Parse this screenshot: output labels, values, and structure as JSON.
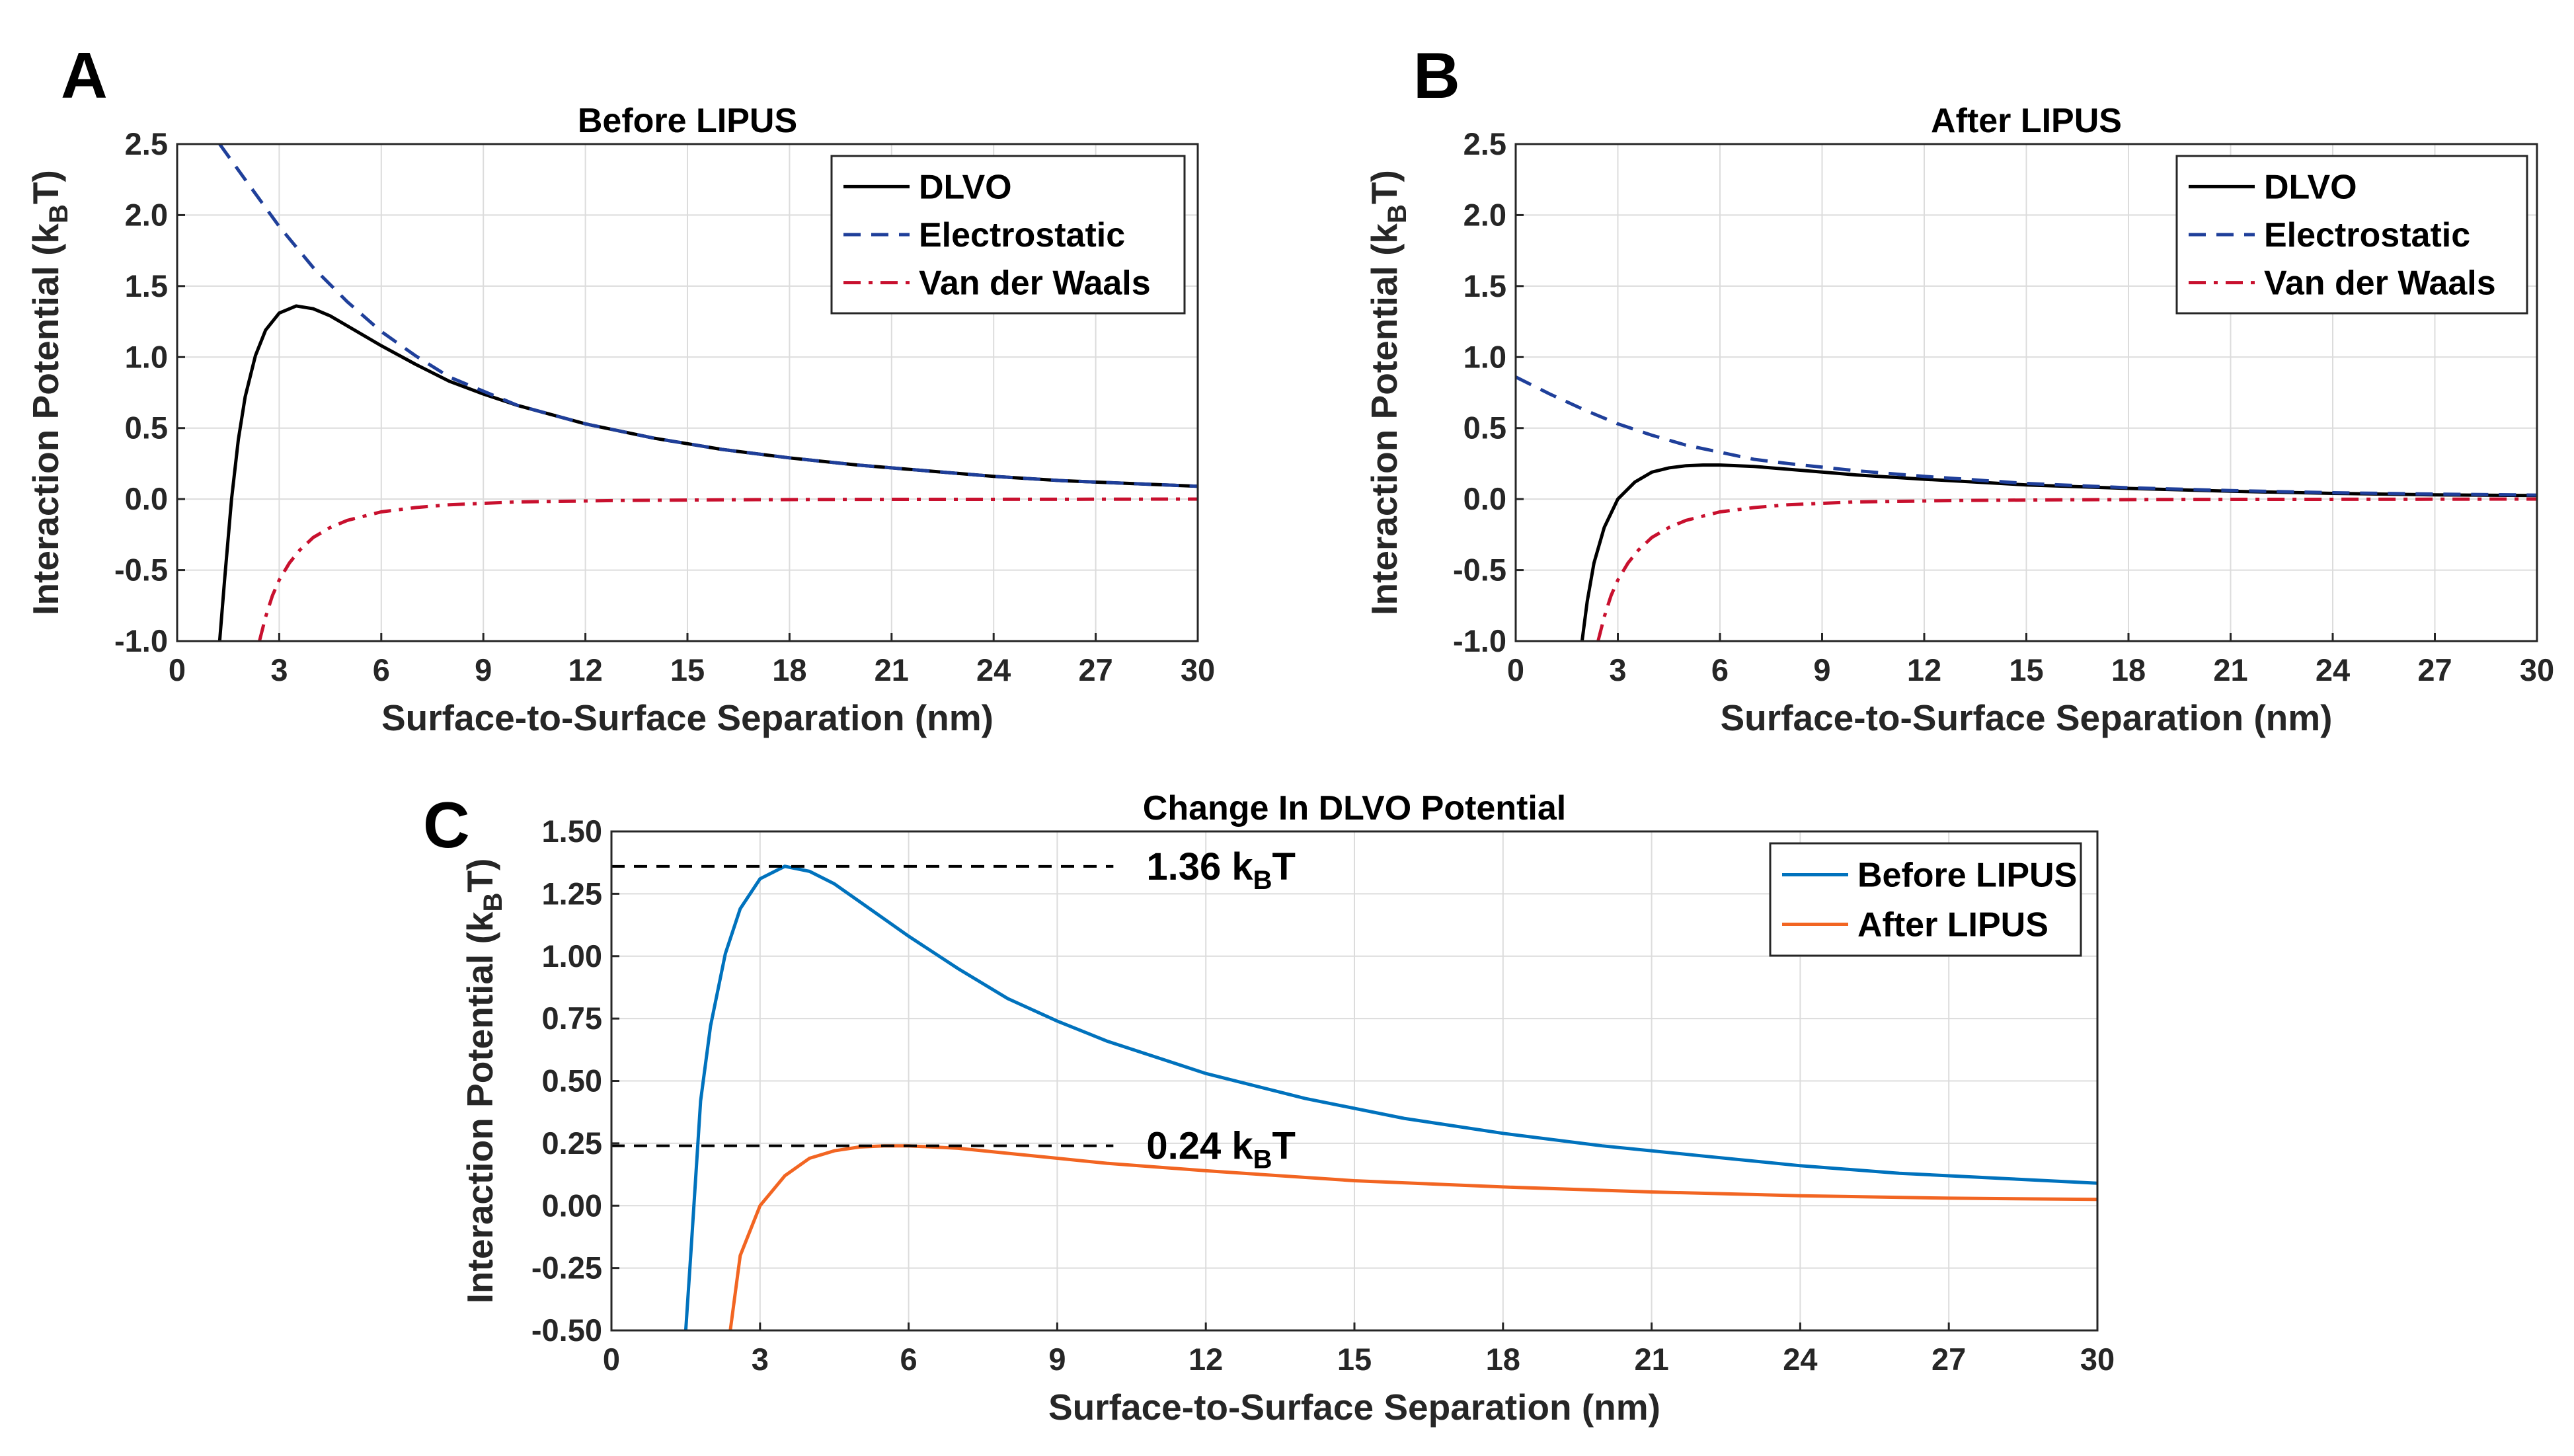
{
  "chart_data": [
    {
      "id": "A",
      "type": "line",
      "panel_label": "A",
      "title": "Before LIPUS",
      "xlabel": "Surface-to-Surface Separation (nm)",
      "ylabel": "Interaction Potential (k",
      "ylabel_sub": "B",
      "ylabel_tail": "T)",
      "xlim": [
        0,
        30
      ],
      "ylim": [
        -1.0,
        2.5
      ],
      "xticks": [
        0,
        3,
        6,
        9,
        12,
        15,
        18,
        21,
        24,
        27,
        30
      ],
      "xtick_labels": [
        "0",
        "3",
        "6",
        "9",
        "12",
        "15",
        "18",
        "21",
        "24",
        "27",
        "30"
      ],
      "yticks": [
        -1.0,
        -0.5,
        0.0,
        0.5,
        1.0,
        1.5,
        2.0,
        2.5
      ],
      "ytick_labels": [
        "-1.0",
        "-0.5",
        "0.0",
        "0.5",
        "1.0",
        "1.5",
        "2.0",
        "2.5"
      ],
      "grid": true,
      "legend_position": "top-right",
      "series": [
        {
          "name": "DLVO",
          "color": "#000000",
          "dash": "solid",
          "x": [
            1.25,
            1.4,
            1.6,
            1.8,
            2.0,
            2.3,
            2.6,
            3.0,
            3.5,
            4.0,
            4.5,
            5.0,
            6.0,
            7.0,
            8.0,
            9.0,
            10.0,
            12.0,
            14.0,
            16.0,
            18.0,
            20.0,
            22.0,
            24.0,
            26.0,
            28.0,
            30.0
          ],
          "y": [
            -1.0,
            -0.55,
            0.0,
            0.42,
            0.72,
            1.01,
            1.19,
            1.31,
            1.36,
            1.34,
            1.29,
            1.22,
            1.08,
            0.95,
            0.83,
            0.74,
            0.66,
            0.53,
            0.43,
            0.35,
            0.29,
            0.24,
            0.2,
            0.16,
            0.13,
            0.11,
            0.09
          ]
        },
        {
          "name": "Electrostatic",
          "color": "#1f3f9a",
          "dash": "dashed",
          "x": [
            1.25,
            2.0,
            3.0,
            4.0,
            5.0,
            6.0,
            7.0,
            8.0,
            10.0,
            12.0,
            14.0,
            16.0,
            18.0,
            20.0,
            22.0,
            24.0,
            26.0,
            28.0,
            30.0
          ],
          "y": [
            2.5,
            2.25,
            1.92,
            1.63,
            1.39,
            1.18,
            1.01,
            0.86,
            0.66,
            0.53,
            0.43,
            0.35,
            0.29,
            0.24,
            0.2,
            0.16,
            0.13,
            0.11,
            0.09
          ]
        },
        {
          "name": "Van der Waals",
          "color": "#c8102e",
          "dash": "dashdot",
          "x": [
            2.42,
            2.6,
            2.8,
            3.0,
            3.3,
            3.6,
            4.0,
            4.5,
            5.0,
            6.0,
            7.0,
            8.0,
            10.0,
            13.0,
            16.0,
            20.0,
            25.0,
            30.0
          ],
          "y": [
            -1.0,
            -0.83,
            -0.68,
            -0.57,
            -0.45,
            -0.36,
            -0.27,
            -0.2,
            -0.15,
            -0.09,
            -0.06,
            -0.04,
            -0.02,
            -0.01,
            -0.005,
            -0.002,
            -0.001,
            0.0
          ]
        }
      ]
    },
    {
      "id": "B",
      "type": "line",
      "panel_label": "B",
      "title": "After LIPUS",
      "xlabel": "Surface-to-Surface Separation (nm)",
      "ylabel": "Interaction Potential (k",
      "ylabel_sub": "B",
      "ylabel_tail": "T)",
      "xlim": [
        0,
        30
      ],
      "ylim": [
        -1.0,
        2.5
      ],
      "xticks": [
        0,
        3,
        6,
        9,
        12,
        15,
        18,
        21,
        24,
        27,
        30
      ],
      "xtick_labels": [
        "0",
        "3",
        "6",
        "9",
        "12",
        "15",
        "18",
        "21",
        "24",
        "27",
        "30"
      ],
      "yticks": [
        -1.0,
        -0.5,
        0.0,
        0.5,
        1.0,
        1.5,
        2.0,
        2.5
      ],
      "ytick_labels": [
        "-1.0",
        "-0.5",
        "0.0",
        "0.5",
        "1.0",
        "1.5",
        "2.0",
        "2.5"
      ],
      "grid": true,
      "legend_position": "top-right",
      "series": [
        {
          "name": "DLVO",
          "color": "#000000",
          "dash": "solid",
          "x": [
            1.95,
            2.1,
            2.3,
            2.6,
            3.0,
            3.5,
            4.0,
            4.5,
            5.0,
            5.5,
            6.0,
            7.0,
            8.0,
            9.0,
            10.0,
            12.0,
            15.0,
            18.0,
            21.0,
            24.0,
            27.0,
            30.0
          ],
          "y": [
            -1.0,
            -0.72,
            -0.45,
            -0.2,
            0.0,
            0.12,
            0.19,
            0.22,
            0.235,
            0.24,
            0.24,
            0.23,
            0.21,
            0.19,
            0.17,
            0.14,
            0.1,
            0.075,
            0.055,
            0.04,
            0.03,
            0.025
          ]
        },
        {
          "name": "Electrostatic",
          "color": "#1f3f9a",
          "dash": "dashed",
          "x": [
            0.0,
            1.0,
            2.0,
            3.0,
            4.0,
            5.0,
            6.0,
            7.0,
            8.0,
            10.0,
            12.0,
            15.0,
            18.0,
            21.0,
            24.0,
            27.0,
            30.0
          ],
          "y": [
            0.86,
            0.74,
            0.63,
            0.53,
            0.45,
            0.38,
            0.33,
            0.28,
            0.25,
            0.2,
            0.16,
            0.11,
            0.08,
            0.06,
            0.045,
            0.035,
            0.028
          ]
        },
        {
          "name": "Van der Waals",
          "color": "#c8102e",
          "dash": "dashdot",
          "x": [
            2.42,
            2.6,
            2.8,
            3.0,
            3.3,
            3.6,
            4.0,
            4.5,
            5.0,
            6.0,
            7.0,
            8.0,
            10.0,
            13.0,
            16.0,
            20.0,
            25.0,
            30.0
          ],
          "y": [
            -1.0,
            -0.83,
            -0.68,
            -0.57,
            -0.45,
            -0.36,
            -0.27,
            -0.2,
            -0.15,
            -0.09,
            -0.06,
            -0.04,
            -0.02,
            -0.01,
            -0.005,
            -0.002,
            -0.001,
            0.0
          ]
        }
      ]
    },
    {
      "id": "C",
      "type": "line",
      "panel_label": "C",
      "title": "Change In DLVO Potential",
      "xlabel": "Surface-to-Surface Separation (nm)",
      "ylabel": "Interaction Potential (k",
      "ylabel_sub": "B",
      "ylabel_tail": "T)",
      "xlim": [
        0,
        30
      ],
      "ylim": [
        -0.5,
        1.5
      ],
      "xticks": [
        0,
        3,
        6,
        9,
        12,
        15,
        18,
        21,
        24,
        27,
        30
      ],
      "xtick_labels": [
        "0",
        "3",
        "6",
        "9",
        "12",
        "15",
        "18",
        "21",
        "24",
        "27",
        "30"
      ],
      "yticks": [
        -0.5,
        -0.25,
        0.0,
        0.25,
        0.5,
        0.75,
        1.0,
        1.25,
        1.5
      ],
      "ytick_labels": [
        "-0.50",
        "-0.25",
        "0.00",
        "0.25",
        "0.50",
        "0.75",
        "1.00",
        "1.25",
        "1.50"
      ],
      "grid": true,
      "legend_position": "top-right",
      "series": [
        {
          "name": "Before LIPUS",
          "color": "#0072bd",
          "dash": "solid",
          "x": [
            1.5,
            1.6,
            1.8,
            2.0,
            2.3,
            2.6,
            3.0,
            3.5,
            4.0,
            4.5,
            5.0,
            6.0,
            7.0,
            8.0,
            9.0,
            10.0,
            12.0,
            14.0,
            16.0,
            18.0,
            20.0,
            22.0,
            24.0,
            26.0,
            28.0,
            30.0
          ],
          "y": [
            -0.5,
            -0.2,
            0.42,
            0.72,
            1.01,
            1.19,
            1.31,
            1.36,
            1.34,
            1.29,
            1.22,
            1.08,
            0.95,
            0.83,
            0.74,
            0.66,
            0.53,
            0.43,
            0.35,
            0.29,
            0.24,
            0.2,
            0.16,
            0.13,
            0.11,
            0.09
          ]
        },
        {
          "name": "After LIPUS",
          "color": "#f26522",
          "dash": "solid",
          "x": [
            2.4,
            2.6,
            3.0,
            3.5,
            4.0,
            4.5,
            5.0,
            5.5,
            6.0,
            7.0,
            8.0,
            9.0,
            10.0,
            12.0,
            15.0,
            18.0,
            21.0,
            24.0,
            27.0,
            30.0
          ],
          "y": [
            -0.5,
            -0.2,
            0.0,
            0.12,
            0.19,
            0.22,
            0.235,
            0.24,
            0.24,
            0.23,
            0.21,
            0.19,
            0.17,
            0.14,
            0.1,
            0.075,
            0.055,
            0.04,
            0.03,
            0.025
          ]
        }
      ],
      "annotations": [
        {
          "value": 1.36,
          "x_end": 10.0,
          "text": "1.36 k",
          "sub": "B",
          "tail": "T"
        },
        {
          "value": 0.24,
          "x_end": 10.0,
          "text": "0.24 k",
          "sub": "B",
          "tail": "T"
        }
      ]
    }
  ]
}
